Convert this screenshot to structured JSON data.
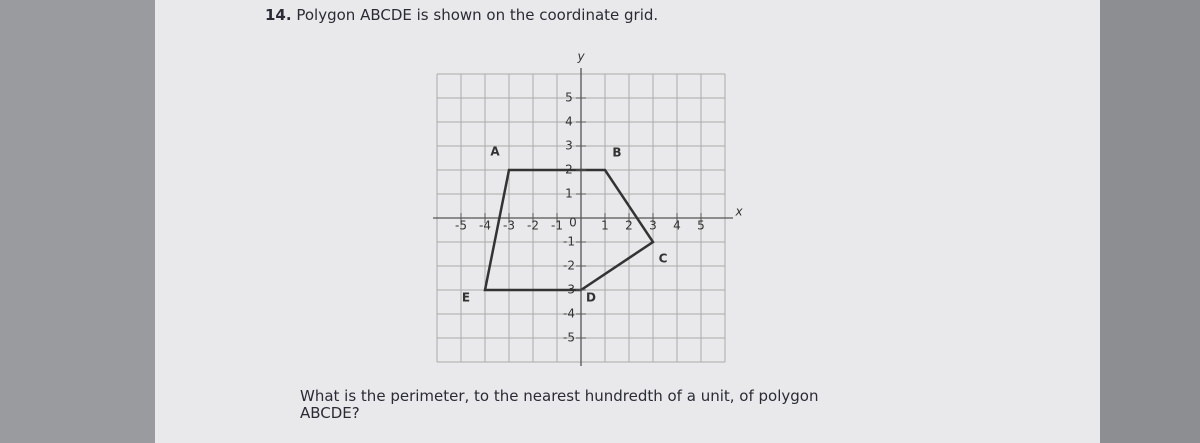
{
  "question": {
    "number": "14.",
    "text": "Polygon ABCDE is shown on the coordinate grid."
  },
  "graph": {
    "x_axis_label": "x",
    "y_axis_label": "y",
    "x_ticks": [
      -5,
      -4,
      -3,
      -2,
      -1,
      1,
      2,
      3,
      4,
      5
    ],
    "y_ticks": [
      5,
      4,
      3,
      2,
      1,
      -1,
      -2,
      -3,
      -4,
      -5
    ],
    "origin_label": "0",
    "vertex_labels": [
      "A",
      "B",
      "C",
      "D",
      "E"
    ]
  },
  "prompt": {
    "line1": "What is the perimeter, to the nearest hundredth of a unit, of polygon",
    "line2": "ABCDE?"
  }
}
